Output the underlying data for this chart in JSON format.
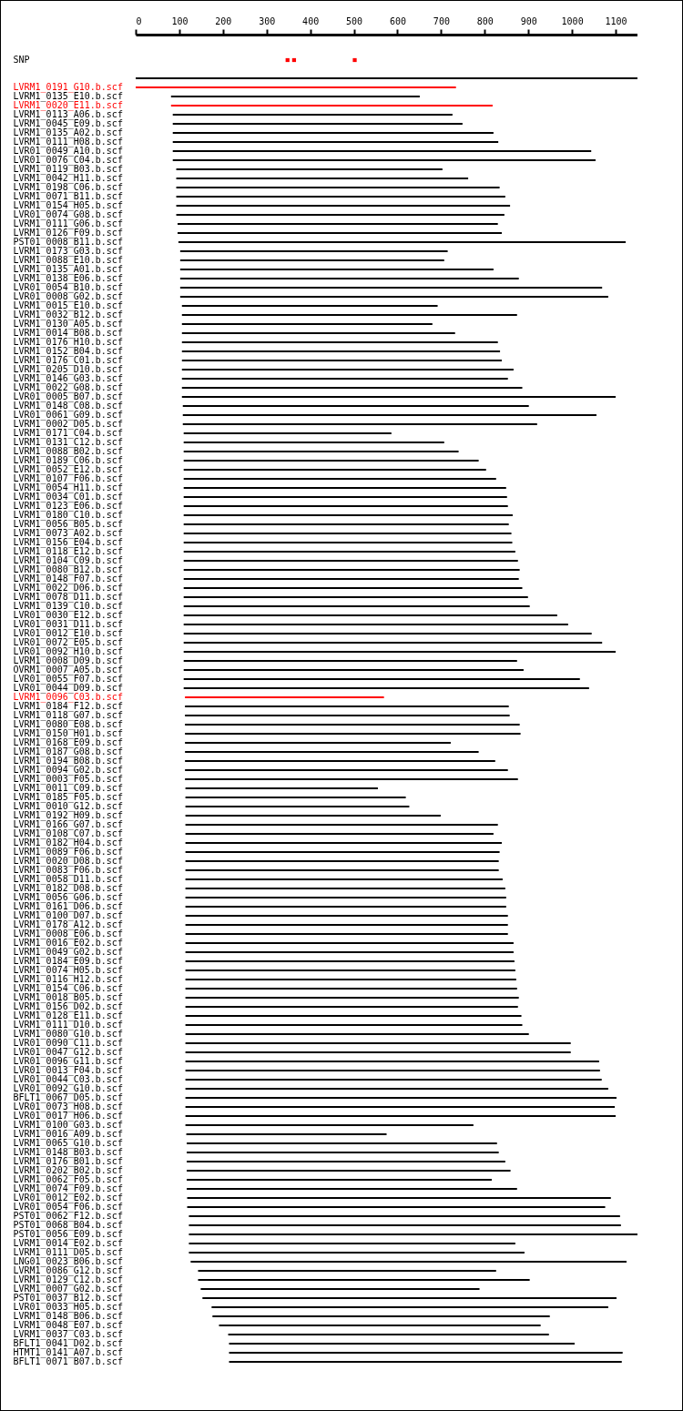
{
  "chart_data": {
    "type": "bar",
    "orientation": "horizontal",
    "xlim": [
      0,
      1150
    ],
    "xticks": [
      0,
      100,
      200,
      300,
      400,
      500,
      600,
      700,
      800,
      900,
      1000,
      1100
    ],
    "categories": [
      "SNP",
      null,
      null,
      "LVRM1_0191_G10.b.scf",
      "LVRM1_0135_E10.b.scf",
      "LVRM1_0020_E11.b.scf",
      "LVRM1_0113_A06.b.scf",
      "LVRM1_0045_E09.b.scf",
      "LVRM1_0135_A02.b.scf",
      "LVRM1_0111_H08.b.scf",
      "LVR01_0049_A10.b.scf",
      "LVR01_0076_C04.b.scf",
      "LVRM1_0119_B03.b.scf",
      "LVRM1_0042_H11.b.scf",
      "LVRM1_0198_C06.b.scf",
      "LVRM1_0071_B11.b.scf",
      "LVRM1_0154_H05.b.scf",
      "LVR01_0074_G08.b.scf",
      "LVRM1_0111_G06.b.scf",
      "LVRM1_0126_F09.b.scf",
      "PST01_0008_B11.b.scf",
      "LVRM1_0173_G03.b.scf",
      "LVRM1_0088_E10.b.scf",
      "LVRM1_0135_A01.b.scf",
      "LVRM1_0138_E06.b.scf",
      "LVR01_0054_B10.b.scf",
      "LVR01_0008_G02.b.scf",
      "LVRM1_0015_E10.b.scf",
      "LVRM1_0032_B12.b.scf",
      "LVRM1_0130_A05.b.scf",
      "LVRM1_0014_B08.b.scf",
      "LVRM1_0176_H10.b.scf",
      "LVRM1_0152_B04.b.scf",
      "LVRM1_0176_C01.b.scf",
      "LVRM1_0205_D10.b.scf",
      "LVRM1_0146_G03.b.scf",
      "LVRM1_0022_G08.b.scf",
      "LVR01_0005_B07.b.scf",
      "LVRM1_0148_C08.b.scf",
      "LVR01_0061_G09.b.scf",
      "LVRM1_0002_D05.b.scf",
      "LVRM1_0171_C04.b.scf",
      "LVRM1_0131_C12.b.scf",
      "LVRM1_0088_B02.b.scf",
      "LVRM1_0189_C06.b.scf",
      "LVRM1_0052_E12.b.scf",
      "LVRM1_0107_F06.b.scf",
      "LVRM1_0054_H11.b.scf",
      "LVRM1_0034_C01.b.scf",
      "LVRM1_0123_E06.b.scf",
      "LVRM1_0180_C10.b.scf",
      "LVRM1_0056_B05.b.scf",
      "LVRM1_0073_A02.b.scf",
      "LVRM1_0156_E04.b.scf",
      "LVRM1_0118_E12.b.scf",
      "LVRM1_0104_C09.b.scf",
      "LVRM1_0080_B12.b.scf",
      "LVRM1_0148_F07.b.scf",
      "LVRM1_0022_D06.b.scf",
      "LVRM1_0078_D11.b.scf",
      "LVRM1_0139_C10.b.scf",
      "LVR01_0030_E12.b.scf",
      "LVR01_0031_D11.b.scf",
      "LVR01_0012_E10.b.scf",
      "LVR01_0072_E05.b.scf",
      "LVR01_0092_H10.b.scf",
      "LVRM1_0008_D09.b.scf",
      "OVRM1_0007_A05.b.scf",
      "LVR01_0055_F07.b.scf",
      "LVR01_0044_D09.b.scf",
      "LVRM1_0096_C03.b.scf",
      "LVRM1_0184_F12.b.scf",
      "LVRM1_0118_G07.b.scf",
      "LVRM1_0080_E08.b.scf",
      "LVRM1_0150_H01.b.scf",
      "LVRM1_0168_E09.b.scf",
      "LVRM1_0187_G08.b.scf",
      "LVRM1_0194_B08.b.scf",
      "LVRM1_0094_G02.b.scf",
      "LVRM1_0003_F05.b.scf",
      "LVRM1_0011_C09.b.scf",
      "LVRM1_0185_F05.b.scf",
      "LVRM1_0010_G12.b.scf",
      "LVRM1_0192_H09.b.scf",
      "LVRM1_0166_G07.b.scf",
      "LVRM1_0108_C07.b.scf",
      "LVRM1_0182_H04.b.scf",
      "LVRM1_0089_F06.b.scf",
      "LVRM1_0020_D08.b.scf",
      "LVRM1_0083_F06.b.scf",
      "LVRM1_0058_D11.b.scf",
      "LVRM1_0182_D08.b.scf",
      "LVRM1_0056_G06.b.scf",
      "LVRM1_0161_D06.b.scf",
      "LVRM1_0100_D07.b.scf",
      "LVRM1_0178_A12.b.scf",
      "LVRM1_0008_E06.b.scf",
      "LVRM1_0016_E02.b.scf",
      "LVRM1_0049_G02.b.scf",
      "LVRM1_0184_E09.b.scf",
      "LVRM1_0074_H05.b.scf",
      "LVRM1_0116_H12.b.scf",
      "LVRM1_0154_C06.b.scf",
      "LVRM1_0018_B05.b.scf",
      "LVRM1_0156_D02.b.scf",
      "LVRM1_0128_E11.b.scf",
      "LVRM1_0111_D10.b.scf",
      "LVRM1_0080_G10.b.scf",
      "LVR01_0090_C11.b.scf",
      "LVR01_0047_G12.b.scf",
      "LVR01_0096_G11.b.scf",
      "LVR01_0013_F04.b.scf",
      "LVR01_0044_C03.b.scf",
      "LVR01_0092_G10.b.scf",
      "BFLT1_0067_D05.b.scf",
      "LVR01_0073_H08.b.scf",
      "LVR01_0017_H06.b.scf",
      "LVRM1_0100_G03.b.scf",
      "LVRM1_0016_A09.b.scf",
      "LVRM1_0065_G10.b.scf",
      "LVRM1_0148_B03.b.scf",
      "LVRM1_0176_B01.b.scf",
      "LVRM1_0202_B02.b.scf",
      "LVRM1_0062_F05.b.scf",
      "LVRM1_0074_F09.b.scf",
      "LVR01_0012_E02.b.scf",
      "LVR01_0054_F06.b.scf",
      "PST01_0062_F12.b.scf",
      "PST01_0068_B04.b.scf",
      "PST01_0056_E09.b.scf",
      "LVRM1_0014_E02.b.scf",
      "LVRM1_0111_D05.b.scf",
      "LNG01_0023_B06.b.scf",
      "LVRM1_0086_G12.b.scf",
      "LVRM1_0129_C12.b.scf",
      "LVRM1_0007_G02.b.scf",
      "PST01_0037_B12.b.scf",
      "LVR01_0033_H05.b.scf",
      "LVRM1_0148_B06.b.scf",
      "LVRM1_0048_E07.b.scf",
      "LVRM1_0037_C03.b.scf",
      "BFLT1_0041_D02.b.scf",
      "HTMT1_0141_A07.b.scf",
      "BFLT1_0071_B07.b.scf"
    ],
    "series": [
      {
        "base": [
          null,
          null,
          0,
          0,
          81,
          81,
          85,
          85,
          85,
          85,
          85,
          85,
          93,
          93,
          93,
          93,
          93,
          93,
          96,
          96,
          98,
          102,
          102,
          102,
          102,
          102,
          102,
          106,
          106,
          106,
          106,
          106,
          106,
          106,
          106,
          106,
          106,
          106,
          108,
          108,
          108,
          110,
          110,
          110,
          110,
          110,
          110,
          110,
          110,
          110,
          110,
          110,
          110,
          110,
          110,
          110,
          110,
          110,
          110,
          110,
          110,
          110,
          110,
          110,
          110,
          110,
          110,
          110,
          110,
          110,
          113,
          113,
          113,
          113,
          113,
          113,
          113,
          113,
          113,
          113,
          114,
          114,
          114,
          114,
          114,
          114,
          114,
          114,
          114,
          114,
          114,
          114,
          114,
          114,
          114,
          114,
          114,
          114,
          114,
          114,
          114,
          114,
          114,
          114,
          114,
          114,
          114,
          114,
          114,
          114,
          114,
          114,
          114,
          114,
          114,
          114,
          114,
          114,
          116,
          117,
          117,
          117,
          117,
          117,
          117,
          118,
          118,
          122,
          122,
          122,
          122,
          122,
          126,
          143,
          143,
          149,
          153,
          174,
          176,
          191,
          212,
          214,
          214,
          214
        ],
        "values": [
          null,
          null,
          1150,
          734,
          570,
          737,
          641,
          664,
          735,
          746,
          959,
          969,
          610,
          669,
          741,
          754,
          765,
          752,
          734,
          743,
          1025,
          613,
          605,
          718,
          776,
          967,
          981,
          586,
          768,
          574,
          626,
          724,
          729,
          733,
          760,
          747,
          780,
          994,
          793,
          948,
          812,
          476,
          597,
          630,
          676,
          693,
          716,
          739,
          741,
          743,
          754,
          745,
          751,
          753,
          760,
          766,
          770,
          768,
          776,
          789,
          793,
          856,
          881,
          935,
          959,
          990,
          764,
          779,
          908,
          929,
          456,
          742,
          744,
          767,
          769,
          609,
          673,
          711,
          740,
          763,
          441,
          505,
          513,
          585,
          716,
          706,
          725,
          720,
          718,
          718,
          727,
          733,
          735,
          735,
          739,
          739,
          739,
          752,
          752,
          754,
          756,
          758,
          760,
          764,
          762,
          770,
          772,
          787,
          883,
          883,
          948,
          950,
          954,
          969,
          988,
          984,
          986,
          660,
          459,
          711,
          715,
          730,
          742,
          699,
          757,
          971,
          958,
          988,
          990,
          1028,
          748,
          769,
          999,
          683,
          760,
          639,
          949,
          909,
          773,
          737,
          735,
          792,
          902,
          900
        ],
        "colors": [
          null,
          null,
          "#000000",
          "#ff0000",
          "#000000",
          "#ff0000",
          "#000000",
          "#000000",
          "#000000",
          "#000000",
          "#000000",
          "#000000",
          "#000000",
          "#000000",
          "#000000",
          "#000000",
          "#000000",
          "#000000",
          "#000000",
          "#000000",
          "#000000",
          "#000000",
          "#000000",
          "#000000",
          "#000000",
          "#000000",
          "#000000",
          "#000000",
          "#000000",
          "#000000",
          "#000000",
          "#000000",
          "#000000",
          "#000000",
          "#000000",
          "#000000",
          "#000000",
          "#000000",
          "#000000",
          "#000000",
          "#000000",
          "#000000",
          "#000000",
          "#000000",
          "#000000",
          "#000000",
          "#000000",
          "#000000",
          "#000000",
          "#000000",
          "#000000",
          "#000000",
          "#000000",
          "#000000",
          "#000000",
          "#000000",
          "#000000",
          "#000000",
          "#000000",
          "#000000",
          "#000000",
          "#000000",
          "#000000",
          "#000000",
          "#000000",
          "#000000",
          "#000000",
          "#000000",
          "#000000",
          "#000000",
          "#ff0000",
          "#000000",
          "#000000",
          "#000000",
          "#000000",
          "#000000",
          "#000000",
          "#000000",
          "#000000",
          "#000000",
          "#000000",
          "#000000",
          "#000000",
          "#000000",
          "#000000",
          "#000000",
          "#000000",
          "#000000",
          "#000000",
          "#000000",
          "#000000",
          "#000000",
          "#000000",
          "#000000",
          "#000000",
          "#000000",
          "#000000",
          "#000000",
          "#000000",
          "#000000",
          "#000000",
          "#000000",
          "#000000",
          "#000000",
          "#000000",
          "#000000",
          "#000000",
          "#000000",
          "#000000",
          "#000000",
          "#000000",
          "#000000",
          "#000000",
          "#000000",
          "#000000",
          "#000000",
          "#000000",
          "#000000",
          "#000000",
          "#000000",
          "#000000",
          "#000000",
          "#000000",
          "#000000",
          "#000000",
          "#000000",
          "#000000",
          "#000000",
          "#000000",
          "#000000",
          "#000000",
          "#000000",
          "#000000",
          "#000000",
          "#000000",
          "#000000",
          "#000000",
          "#000000",
          "#000000",
          "#000000",
          "#000000",
          "#000000",
          "#000000",
          "#000000"
        ]
      },
      {
        "type": "scatter",
        "marker": "square",
        "color": "#ff0000",
        "x": [
          "SNP",
          "SNP",
          "SNP"
        ],
        "values": [
          348,
          363,
          502
        ]
      }
    ]
  }
}
